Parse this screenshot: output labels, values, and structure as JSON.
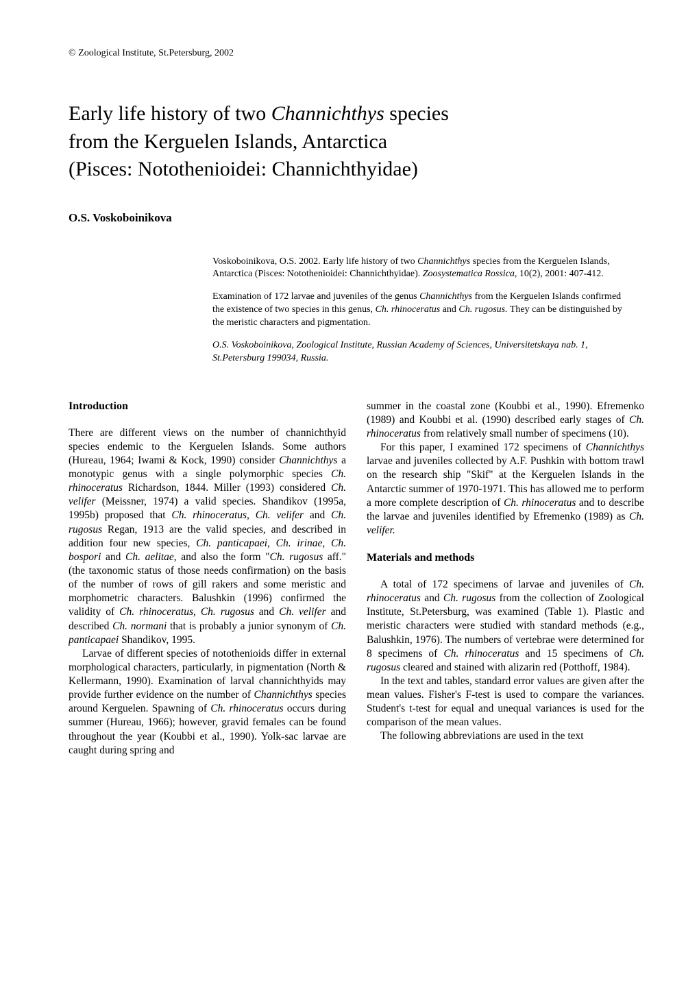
{
  "copyright": "©   Zoological Institute,  St.Petersburg,  2002",
  "title_line1": "Early life history of two ",
  "title_taxon": "Channichthys",
  "title_line1_after": " species",
  "title_line2": "from the Kerguelen Islands, Antarctica",
  "title_line3": "(Pisces: Notothenioidei: Channichthyidae)",
  "author": "O.S. Voskoboinikova",
  "abstract": {
    "citation_pre": "Voskoboinikova, O.S. 2002. Early life history of two ",
    "citation_taxon": "Channichthys",
    "citation_post": " species from the Kerguelen Islands, Antarctica (Pisces: Notothenioidei: Channichthyidae). ",
    "citation_journal": "Zoosystematica Rossica",
    "citation_ref": ", 10(2), 2001: 407-412.",
    "abstract_pre": "Examination of 172 larvae and juveniles of the genus ",
    "abstract_taxon1": "Channichthys",
    "abstract_mid1": " from the Kerguelen Islands confirmed the existence of two species in this genus, ",
    "abstract_taxon2": "Ch. rhinoceratus",
    "abstract_mid2": " and ",
    "abstract_taxon3": "Ch. rugosus.",
    "abstract_post": " They can be distinguished by the meristic characters and pigmentation.",
    "affiliation": "O.S. Voskoboinikova, Zoological Institute, Russian Academy of Sciences, Universitetskaya nab. 1, St.Petersburg 199034, Russia."
  },
  "left_column": {
    "heading": "Introduction",
    "p1": "There are different views on the number of channichthyid species endemic to the Kerguelen Islands. Some authors (Hureau, 1964; Iwami & Kock, 1990) consider ",
    "p1_t1": "Channichthys",
    "p1_a": " a monotypic genus with a single polymorphic species ",
    "p1_t2": "Ch. rhinoceratus",
    "p1_b": " Richardson, 1844. Miller (1993) considered ",
    "p1_t3": "Ch. velifer",
    "p1_c": " (Meissner, 1974) a valid species. Shandikov (1995a, 1995b) proposed that ",
    "p1_t4": "Ch. rhinoceratus, Ch. velifer",
    "p1_d": " and ",
    "p1_t5": "Ch. rugosus",
    "p1_e": " Regan, 1913 are the valid species, and described in addition four new species, ",
    "p1_t6": "Ch. panticapaei, Ch. irinae, Ch. bospori",
    "p1_f": " and ",
    "p1_t7": "Ch. aelitae",
    "p1_g": ", and also the form \"",
    "p1_t8": "Ch. rugosus",
    "p1_h": " aff.\" (the taxonomic status of those needs confirmation) on the basis of the number of rows of gill rakers and some meristic and morphometric characters. Balushkin (1996) confirmed the validity of ",
    "p1_t9": "Ch. rhinoceratus, Ch. rugosus",
    "p1_i": " and ",
    "p1_t10": "Ch. velifer",
    "p1_j": " and described ",
    "p1_t11": "Ch. normani",
    "p1_k": " that is probably a junior synonym of ",
    "p1_t12": "Ch. panticapaei",
    "p1_l": " Shandikov, 1995.",
    "p2": "Larvae of different species of notothenioids differ in external morphological characters, particularly, in pigmentation (North & Kellermann, 1990). Examination of larval channichthyids may provide further evidence on the number of ",
    "p2_t1": "Channichthys",
    "p2_a": " species around Kerguelen. Spawning of ",
    "p2_t2": "Ch. rhinoceratus",
    "p2_b": " occurs during summer (Hureau, 1966); however, gravid females can be found throughout the year (Koubbi et al., 1990). Yolk-sac larvae are caught during spring and"
  },
  "right_column": {
    "p1": "summer in the coastal zone (Koubbi et al., 1990). Efremenko (1989) and Koubbi et al. (1990) described early stages of ",
    "p1_t1": "Ch. rhinoceratus",
    "p1_a": " from relatively small number of specimens (10).",
    "p2": "For this paper, I examined 172 specimens of ",
    "p2_t1": "Channichthys",
    "p2_a": " larvae and juveniles collected by A.F. Pushkin with bottom trawl on the research ship \"Skif\" at the Kerguelen Islands in the Antarctic summer of 1970-1971. This has allowed me to perform a more complete description of ",
    "p2_t2": "Ch. rhinoceratus",
    "p2_b": " and to describe the larvae and juveniles identified by Efremenko (1989) as ",
    "p2_t3": "Ch. velifer.",
    "heading": "Materials and methods",
    "p3": "A total of 172 specimens of larvae and juveniles of ",
    "p3_t1": "Ch. rhinoceratus",
    "p3_a": " and ",
    "p3_t2": "Ch. rugosus",
    "p3_b": " from the collection of Zoological Institute, St.Petersburg, was examined (Table 1). Plastic and meristic characters were studied with standard methods (e.g., Balushkin, 1976). The numbers of vertebrae were determined for 8 specimens of ",
    "p3_t3": "Ch. rhinoceratus",
    "p3_c": " and 15 specimens of ",
    "p3_t4": "Ch. rugosus",
    "p3_d": " cleared and stained with alizarin red (Potthoff, 1984).",
    "p4": "In the text and tables, standard error values are given after the mean values. Fisher's F-test is used to compare the variances. Student's t-test for equal and unequal variances is used for the comparison of the mean values.",
    "p5": "The following abbreviations are used in the text"
  }
}
